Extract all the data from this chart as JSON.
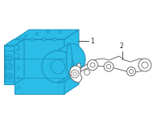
{
  "bg_color": "#ffffff",
  "p1_fill": "#2bbce8",
  "p1_edge": "#1a90b8",
  "p1_dark": "#1a90b8",
  "p2_fill": "#ffffff",
  "p2_edge": "#555555",
  "label1": "1",
  "label2": "2"
}
